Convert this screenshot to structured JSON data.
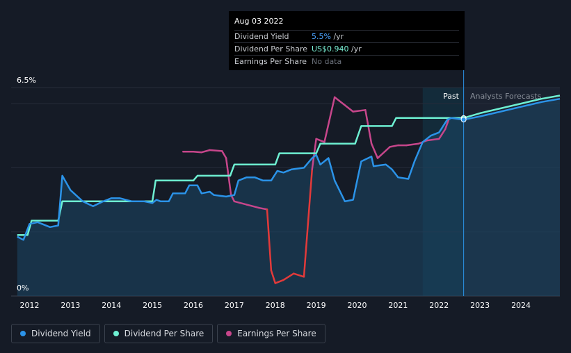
{
  "tooltip": {
    "date": "Aug 03 2022",
    "rows": [
      {
        "label": "Dividend Yield",
        "value": "5.5%",
        "unit": " /yr"
      },
      {
        "label": "Dividend Per Share",
        "value": "US$0.940",
        "unit": " /yr"
      },
      {
        "label": "Earnings Per Share",
        "value": "No data"
      }
    ]
  },
  "legend": [
    {
      "label": "Dividend Yield",
      "color": "#2b93e8"
    },
    {
      "label": "Dividend Per Share",
      "color": "#6ef0d2"
    },
    {
      "label": "Earnings Per Share",
      "color": "#c7468b"
    }
  ],
  "chart_data": {
    "type": "line",
    "y_labels": [
      "6.5%",
      "0%"
    ],
    "x_ticks": [
      "2012",
      "2013",
      "2014",
      "2015",
      "2016",
      "2017",
      "2018",
      "2019",
      "2020",
      "2021",
      "2022",
      "2023",
      "2024"
    ],
    "past_label": "Past",
    "forecast_label": "Analysts Forecasts",
    "xlim": [
      2011.55,
      2024.95
    ],
    "ylim": [
      0,
      6.5
    ],
    "past_region_start": 2021.6,
    "now": 2022.6,
    "series": [
      {
        "name": "Dividend Yield",
        "color": "#2b93e8",
        "points": [
          [
            2011.7,
            1.85
          ],
          [
            2011.85,
            1.75
          ],
          [
            2012.0,
            2.25
          ],
          [
            2012.2,
            2.3
          ],
          [
            2012.5,
            2.15
          ],
          [
            2012.7,
            2.2
          ],
          [
            2012.8,
            3.75
          ],
          [
            2013.0,
            3.3
          ],
          [
            2013.3,
            2.95
          ],
          [
            2013.55,
            2.8
          ],
          [
            2013.8,
            2.95
          ],
          [
            2014.0,
            3.05
          ],
          [
            2014.2,
            3.05
          ],
          [
            2014.5,
            2.95
          ],
          [
            2014.8,
            2.95
          ],
          [
            2015.0,
            2.9
          ],
          [
            2015.1,
            3.0
          ],
          [
            2015.2,
            2.95
          ],
          [
            2015.4,
            2.95
          ],
          [
            2015.5,
            3.2
          ],
          [
            2015.8,
            3.2
          ],
          [
            2015.9,
            3.45
          ],
          [
            2016.1,
            3.45
          ],
          [
            2016.2,
            3.2
          ],
          [
            2016.4,
            3.25
          ],
          [
            2016.5,
            3.15
          ],
          [
            2016.8,
            3.1
          ],
          [
            2017.0,
            3.15
          ],
          [
            2017.1,
            3.6
          ],
          [
            2017.3,
            3.7
          ],
          [
            2017.5,
            3.7
          ],
          [
            2017.7,
            3.6
          ],
          [
            2017.9,
            3.6
          ],
          [
            2018.05,
            3.9
          ],
          [
            2018.2,
            3.85
          ],
          [
            2018.4,
            3.95
          ],
          [
            2018.7,
            4.0
          ],
          [
            2018.9,
            4.3
          ],
          [
            2019.0,
            4.4
          ],
          [
            2019.1,
            4.1
          ],
          [
            2019.3,
            4.3
          ],
          [
            2019.45,
            3.6
          ],
          [
            2019.7,
            2.95
          ],
          [
            2019.9,
            3.0
          ],
          [
            2020.1,
            4.2
          ],
          [
            2020.35,
            4.35
          ],
          [
            2020.4,
            4.05
          ],
          [
            2020.7,
            4.1
          ],
          [
            2020.85,
            3.95
          ],
          [
            2021.0,
            3.7
          ],
          [
            2021.25,
            3.65
          ],
          [
            2021.4,
            4.2
          ],
          [
            2021.6,
            4.8
          ],
          [
            2021.8,
            5.0
          ],
          [
            2022.0,
            5.1
          ],
          [
            2022.2,
            5.5
          ],
          [
            2022.3,
            5.55
          ],
          [
            2022.6,
            5.5
          ],
          [
            2023.0,
            5.6
          ],
          [
            2023.5,
            5.75
          ],
          [
            2024.0,
            5.9
          ],
          [
            2024.5,
            6.05
          ],
          [
            2024.95,
            6.15
          ]
        ]
      },
      {
        "name": "Dividend Per Share",
        "color": "#6ef0d2",
        "points": [
          [
            2011.7,
            1.9
          ],
          [
            2011.95,
            1.9
          ],
          [
            2012.05,
            2.35
          ],
          [
            2012.7,
            2.35
          ],
          [
            2012.8,
            2.95
          ],
          [
            2015.0,
            2.95
          ],
          [
            2015.08,
            3.6
          ],
          [
            2016.0,
            3.6
          ],
          [
            2016.1,
            3.75
          ],
          [
            2016.9,
            3.75
          ],
          [
            2017.0,
            4.1
          ],
          [
            2018.0,
            4.1
          ],
          [
            2018.1,
            4.45
          ],
          [
            2019.0,
            4.45
          ],
          [
            2019.1,
            4.75
          ],
          [
            2019.95,
            4.75
          ],
          [
            2020.1,
            5.3
          ],
          [
            2020.85,
            5.3
          ],
          [
            2020.95,
            5.55
          ],
          [
            2022.6,
            5.55
          ],
          [
            2023.0,
            5.7
          ],
          [
            2023.5,
            5.85
          ],
          [
            2024.0,
            6.0
          ],
          [
            2024.5,
            6.15
          ],
          [
            2024.95,
            6.25
          ]
        ]
      },
      {
        "name": "Earnings Per Share",
        "color": "#c7468b",
        "low_color": "#e23a3a",
        "points": [
          [
            2015.75,
            4.5
          ],
          [
            2016.0,
            4.5
          ],
          [
            2016.2,
            4.48
          ],
          [
            2016.4,
            4.55
          ],
          [
            2016.7,
            4.52
          ],
          [
            2016.8,
            4.3
          ],
          [
            2016.92,
            3.15
          ],
          [
            2017.0,
            2.95
          ],
          [
            2017.3,
            2.85
          ],
          [
            2017.6,
            2.75
          ],
          [
            2017.8,
            2.7
          ],
          [
            2017.9,
            0.8
          ],
          [
            2018.0,
            0.4
          ],
          [
            2018.2,
            0.5
          ],
          [
            2018.45,
            0.7
          ],
          [
            2018.7,
            0.6
          ],
          [
            2018.9,
            3.95
          ],
          [
            2019.0,
            4.9
          ],
          [
            2019.2,
            4.8
          ],
          [
            2019.45,
            6.2
          ],
          [
            2019.7,
            5.95
          ],
          [
            2019.9,
            5.75
          ],
          [
            2020.2,
            5.8
          ],
          [
            2020.35,
            4.75
          ],
          [
            2020.5,
            4.3
          ],
          [
            2020.8,
            4.65
          ],
          [
            2021.0,
            4.7
          ],
          [
            2021.2,
            4.7
          ],
          [
            2021.5,
            4.75
          ],
          [
            2021.7,
            4.85
          ],
          [
            2022.0,
            4.9
          ],
          [
            2022.15,
            5.2
          ],
          [
            2022.25,
            5.55
          ]
        ]
      }
    ]
  }
}
